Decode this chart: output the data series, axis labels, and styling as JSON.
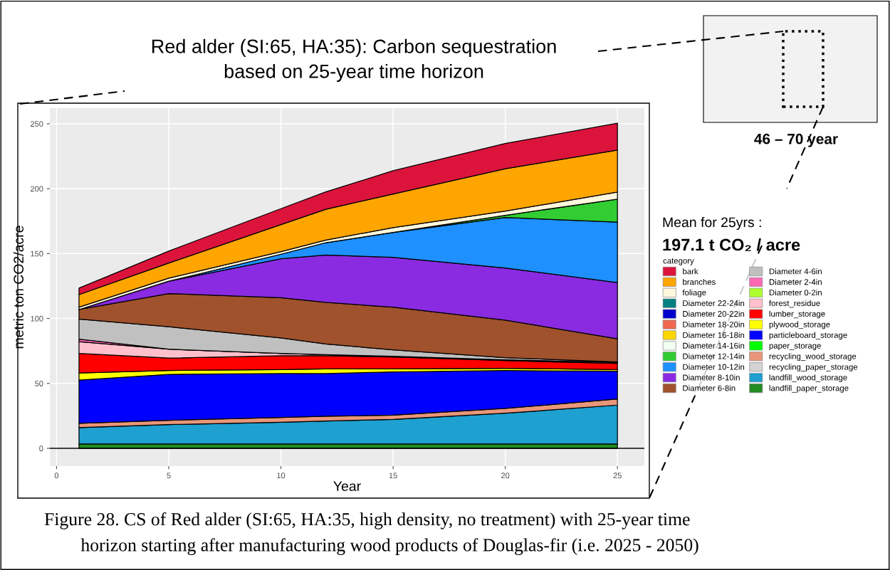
{
  "chart_data": {
    "type": "area",
    "stacked": true,
    "title": "Red alder (SI:65, HA:35): Carbon sequestration\nbased on 25-year time horizon",
    "xlabel": "Year",
    "ylabel": "metric ton CO2/acre",
    "legend_title": "category",
    "legend": "right",
    "grid": true,
    "x": [
      1,
      5,
      10,
      12,
      15,
      20,
      25
    ],
    "xlim": [
      -0.3,
      26.2
    ],
    "xticks": [
      0,
      5,
      10,
      15,
      20,
      25
    ],
    "ylim": [
      -13.7,
      262
    ],
    "yticks": [
      0,
      50,
      100,
      150,
      200,
      250
    ],
    "ref_lines": [
      {
        "axis": "y",
        "value": 0,
        "color": "#000000"
      }
    ],
    "annotations": [
      "46 – 70 year",
      "Mean for 25yrs :",
      "197.1 t CO₂ / acre",
      "Figure 28. CS of Red alder (SI:65, HA:35, high density, no treatment) with 25-year time\n        horizon starting after manufacturing wood products of Douglas-fir (i.e. 2025 - 2050)"
    ],
    "series": [
      {
        "name": "landfill_paper_storage",
        "color": "#228b22",
        "values": [
          3.3,
          3.3,
          3.3,
          3.3,
          3.3,
          3.3,
          3.3
        ]
      },
      {
        "name": "landfill_wood_storage",
        "color": "#1ea0d0",
        "values": [
          12.7,
          15,
          16.8,
          17.7,
          19,
          23.7,
          30
        ]
      },
      {
        "name": "recycling_paper_storage",
        "color": "#d3d3d3",
        "values": [
          null,
          null,
          null,
          null,
          null,
          null,
          null
        ]
      },
      {
        "name": "recycling_wood_storage",
        "color": "#e9967a",
        "values": [
          3.2,
          3.3,
          3.7,
          3.7,
          3.3,
          3.7,
          4.7
        ]
      },
      {
        "name": "paper_storage",
        "color": "#00ff00",
        "values": [
          null,
          null,
          null,
          null,
          null,
          null,
          null
        ]
      },
      {
        "name": "particleboard_storage",
        "color": "#0000ff",
        "values": [
          33.4,
          35.4,
          33.8,
          32.9,
          33.2,
          29.2,
          21.4
        ]
      },
      {
        "name": "plywood_storage",
        "color": "#ffff00",
        "values": [
          5.5,
          3,
          3.1,
          3.6,
          2.4,
          1.7,
          1.3
        ]
      },
      {
        "name": "lumber_storage",
        "color": "#ff0000",
        "values": [
          15,
          9.5,
          10.6,
          10.1,
          9.2,
          6,
          4.7
        ]
      },
      {
        "name": "forest_residue",
        "color": "#ffc0cb",
        "values": [
          9.1,
          6.9,
          1.8,
          0.9,
          0.5,
          0.6,
          0.8
        ]
      },
      {
        "name": "Diameter 0-2in",
        "color": "#adff2f",
        "values": [
          null,
          null,
          null,
          null,
          null,
          null,
          null
        ]
      },
      {
        "name": "Diameter 2-4in",
        "color": "#ff69b4",
        "values": [
          1.9,
          0,
          0,
          0,
          0,
          0,
          0
        ]
      },
      {
        "name": "Diameter 4-6in",
        "color": "#c0c0c0",
        "values": [
          15.5,
          17.2,
          11.9,
          8.2,
          4.9,
          1.6,
          0.3
        ]
      },
      {
        "name": "Diameter 6-8in",
        "color": "#a0522d",
        "values": [
          7.3,
          25.6,
          31,
          32,
          32.9,
          28.9,
          17.9
        ]
      },
      {
        "name": "Diameter 8-10in",
        "color": "#8a2be2",
        "values": [
          0,
          9.5,
          30,
          36.5,
          38.4,
          40.2,
          43.2
        ]
      },
      {
        "name": "Diameter 10-12in",
        "color": "#1e90ff",
        "values": [
          0,
          0,
          3.5,
          9.5,
          19.2,
          38.9,
          46.6
        ]
      },
      {
        "name": "Diameter 12-14in",
        "color": "#32cd32",
        "values": [
          0,
          0,
          0,
          0,
          0,
          1.7,
          17.7
        ]
      },
      {
        "name": "Diameter 14-16in",
        "color": "#f0fff0",
        "values": [
          null,
          null,
          null,
          null,
          null,
          null,
          null
        ]
      },
      {
        "name": "Diameter 16-18in",
        "color": "#ffd700",
        "values": [
          null,
          null,
          null,
          null,
          null,
          null,
          null
        ]
      },
      {
        "name": "Diameter 18-20in",
        "color": "#f0684f",
        "values": [
          null,
          null,
          null,
          null,
          null,
          null,
          null
        ]
      },
      {
        "name": "Diameter 20-22in",
        "color": "#0000cd",
        "values": [
          null,
          null,
          null,
          null,
          null,
          null,
          null
        ]
      },
      {
        "name": "Diameter 22-24in",
        "color": "#008080",
        "values": [
          null,
          null,
          null,
          null,
          null,
          null,
          null
        ]
      },
      {
        "name": "foliage",
        "color": "#fff8dc",
        "values": [
          1.8,
          2.4,
          2,
          2,
          3.7,
          3.2,
          5.5
        ]
      },
      {
        "name": "branches",
        "color": "#ffa500",
        "values": [
          9.7,
          11.6,
          20.8,
          23.7,
          25.9,
          32.6,
          32.3
        ]
      },
      {
        "name": "bark",
        "color": "#dc143c",
        "values": [
          5,
          9.2,
          12.3,
          13.4,
          17.9,
          19.5,
          20.7
        ]
      }
    ]
  }
}
